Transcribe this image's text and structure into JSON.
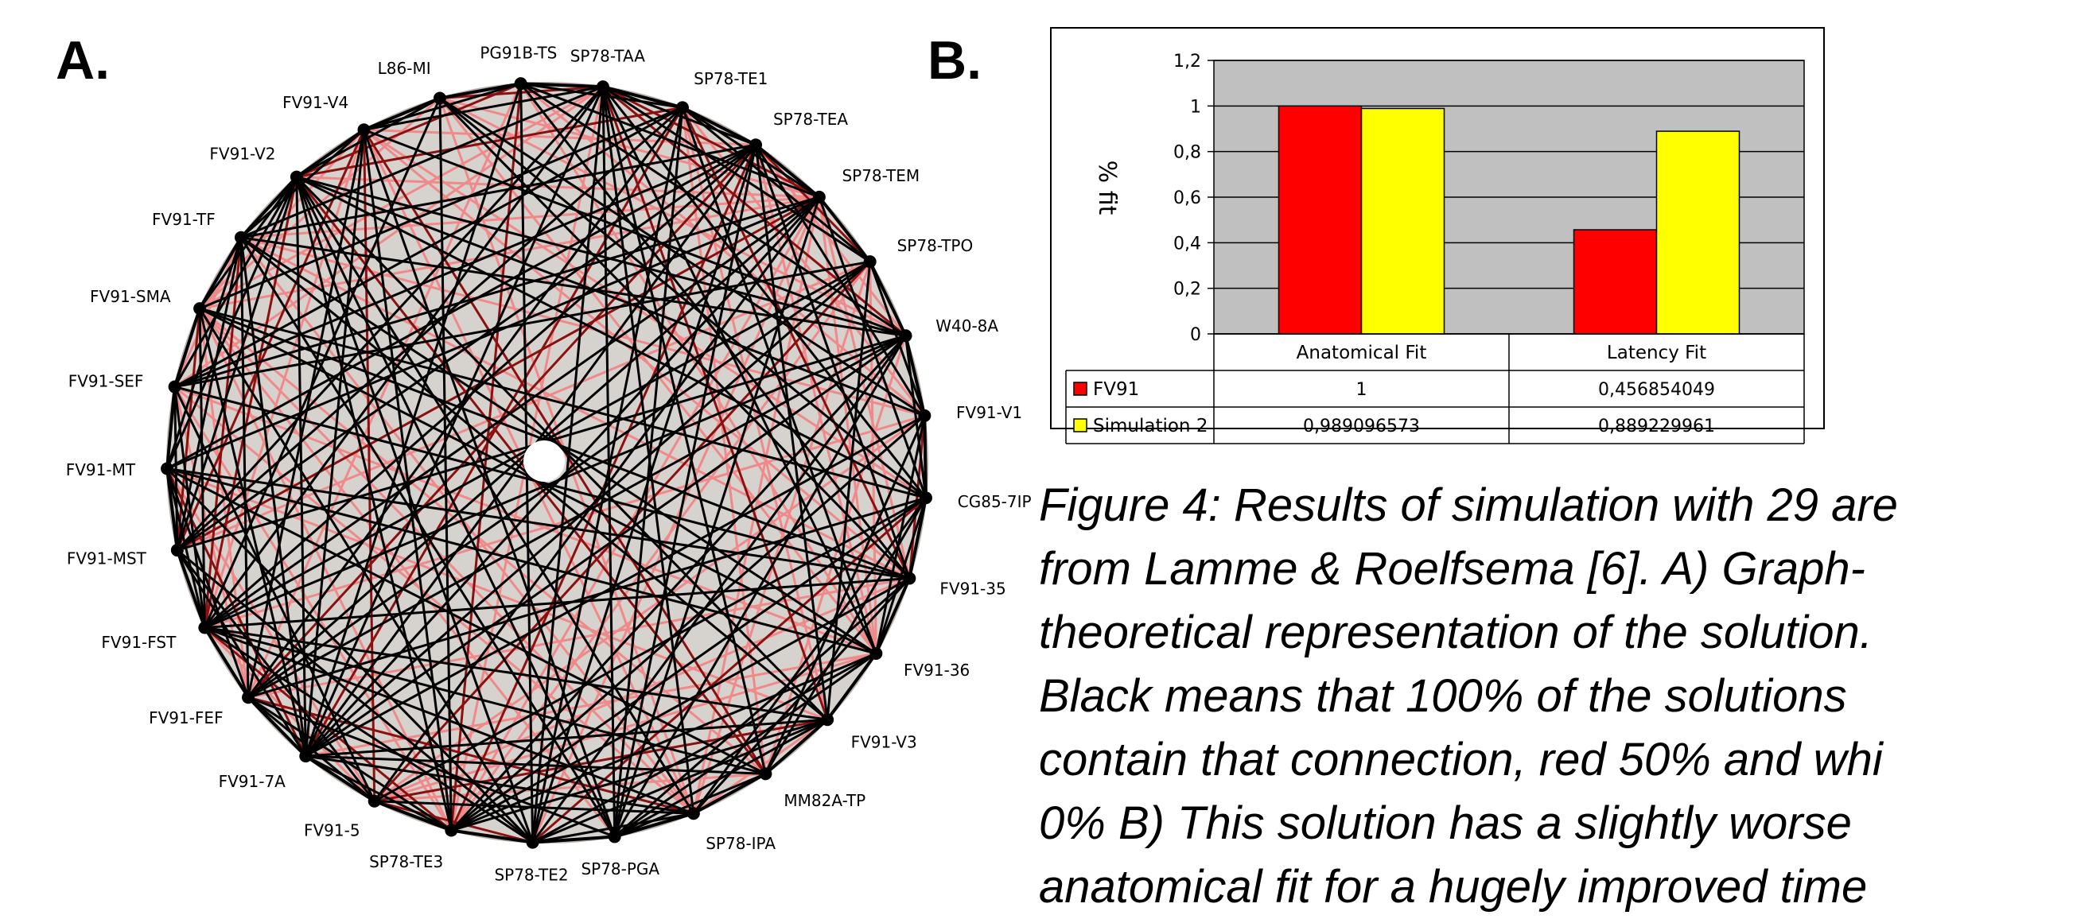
{
  "panel_a": {
    "label": "A.",
    "nodes": [
      "PG91B-TS",
      "SP78-TAA",
      "SP78-TE1",
      "SP78-TEA",
      "SP78-TEM",
      "SP78-TPO",
      "W40-8A",
      "FV91-V1",
      "CG85-7IP",
      "FV91-35",
      "FV91-36",
      "FV91-V3",
      "MM82A-TP",
      "SP78-IPA",
      "SP78-PGA",
      "SP78-TE2",
      "SP78-TE3",
      "FV91-5",
      "FV91-7A",
      "FV91-FEF",
      "FV91-FST",
      "FV91-MST",
      "FV91-MT",
      "FV91-SEF",
      "FV91-SMA",
      "FV91-TF",
      "FV91-V2",
      "FV91-V4",
      "L86-MI"
    ],
    "colors": {
      "disc": "#d6d2ce",
      "black_edge": "#000000",
      "dark_red_edge": "#8b1010",
      "pink_edge": "#f08a8a"
    }
  },
  "panel_b": {
    "label": "B."
  },
  "chart_data": {
    "type": "bar",
    "categories": [
      "Anatomical Fit",
      "Latency Fit"
    ],
    "series": [
      {
        "name": "FV91",
        "values": [
          1,
          0.456854049
        ],
        "labels": [
          "1",
          "0,456854049"
        ],
        "color": "#ff0000"
      },
      {
        "name": "Simulation 2",
        "values": [
          0.989096573,
          0.889229961
        ],
        "labels": [
          "0,989096573",
          "0,889229961"
        ],
        "color": "#ffff00"
      }
    ],
    "ylabel": "% fit",
    "ylim": [
      0,
      1.2
    ],
    "yticks": [
      "0",
      "0,2",
      "0,4",
      "0,6",
      "0,8",
      "1",
      "1,2"
    ],
    "grid": true,
    "plot_background": "#c0c0c0",
    "legend": "data-table-below"
  },
  "caption": {
    "lines": [
      "Figure 4: Results of simulation with 29 are",
      "from Lamme & Roelfsema [6]. A) Graph-",
      "theoretical representation of the solution.",
      "Black means that 100% of the solutions",
      "contain that connection, red 50% and whi",
      "0% B) This solution has a slightly worse",
      "anatomical fit for a hugely improved time"
    ]
  }
}
